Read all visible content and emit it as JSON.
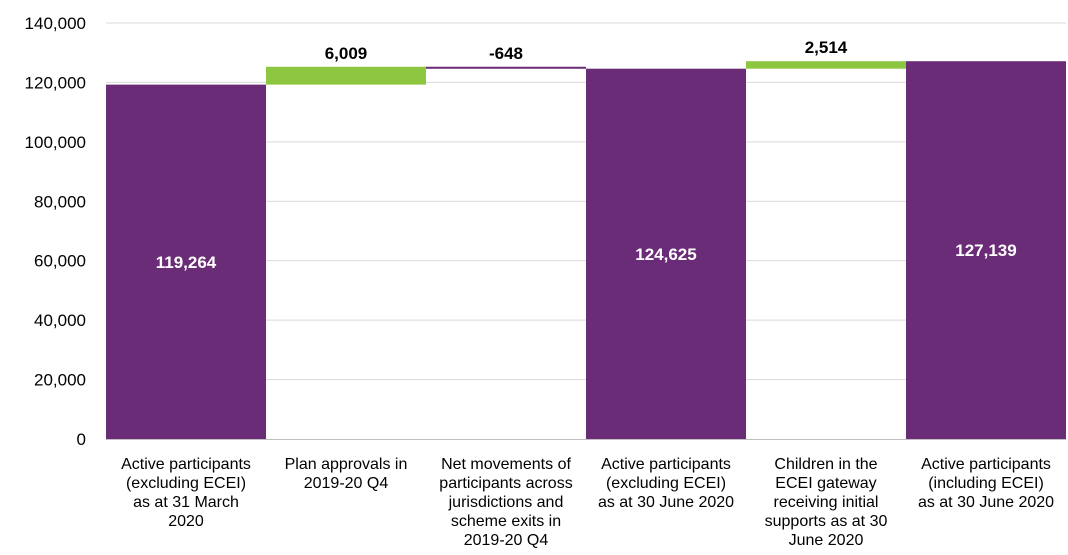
{
  "chart_data": {
    "type": "bar",
    "subtype": "waterfall",
    "title": "",
    "xlabel": "",
    "ylabel": "",
    "ylim": [
      0,
      140000
    ],
    "yticks": [
      0,
      20000,
      40000,
      60000,
      80000,
      100000,
      120000,
      140000
    ],
    "ytick_labels": [
      "0",
      "20,000",
      "40,000",
      "60,000",
      "80,000",
      "100,000",
      "120,000",
      "140,000"
    ],
    "grid": true,
    "legend": "none",
    "colors": {
      "total": "#6B2C77",
      "increase": "#8DC63F",
      "decrease": "#6B2C77"
    },
    "bars": [
      {
        "category": [
          "Active participants",
          "(excluding ECEI)",
          "as at 31 March",
          "2020"
        ],
        "kind": "total",
        "start": 0,
        "end": 119264,
        "label": "119,264"
      },
      {
        "category": [
          "Plan approvals in",
          "2019-20 Q4"
        ],
        "kind": "increase",
        "start": 119264,
        "end": 125273,
        "label": "6,009"
      },
      {
        "category": [
          "Net movements of",
          "participants across",
          "jurisdictions and",
          "scheme exits in",
          "2019-20 Q4"
        ],
        "kind": "decrease",
        "start": 125273,
        "end": 124625,
        "label": "-648"
      },
      {
        "category": [
          "Active participants",
          "(excluding ECEI)",
          "as at 30 June 2020"
        ],
        "kind": "total",
        "start": 0,
        "end": 124625,
        "label": "124,625"
      },
      {
        "category": [
          "Children in the",
          "ECEI gateway",
          "receiving initial",
          "supports as at 30",
          "June 2020"
        ],
        "kind": "increase",
        "start": 124625,
        "end": 127139,
        "label": "2,514"
      },
      {
        "category": [
          "Active participants",
          "(including ECEI)",
          "as at 30 June 2020"
        ],
        "kind": "total",
        "start": 0,
        "end": 127139,
        "label": "127,139"
      }
    ]
  }
}
